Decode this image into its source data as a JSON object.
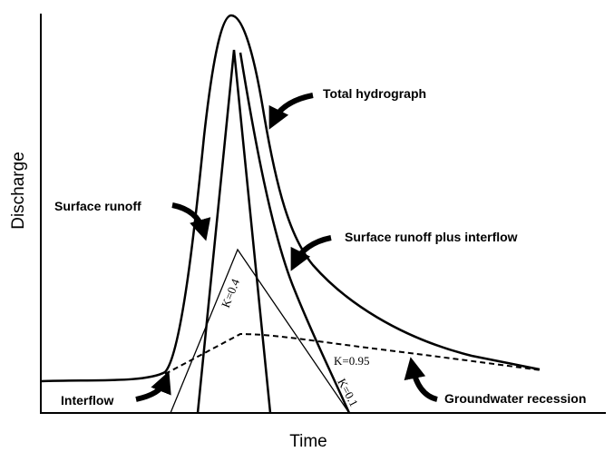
{
  "axes": {
    "y_label": "Discharge",
    "x_label": "Time"
  },
  "annotations": {
    "total": "Total hydrograph",
    "surface": "Surface runoff",
    "surface_interflow": "Surface runoff plus interflow",
    "interflow": "Interflow",
    "groundwater": "Groundwater recession"
  },
  "k_labels": {
    "k04": "K=0.4",
    "k095": "K=0.95",
    "k01": "K=0.1"
  }
}
